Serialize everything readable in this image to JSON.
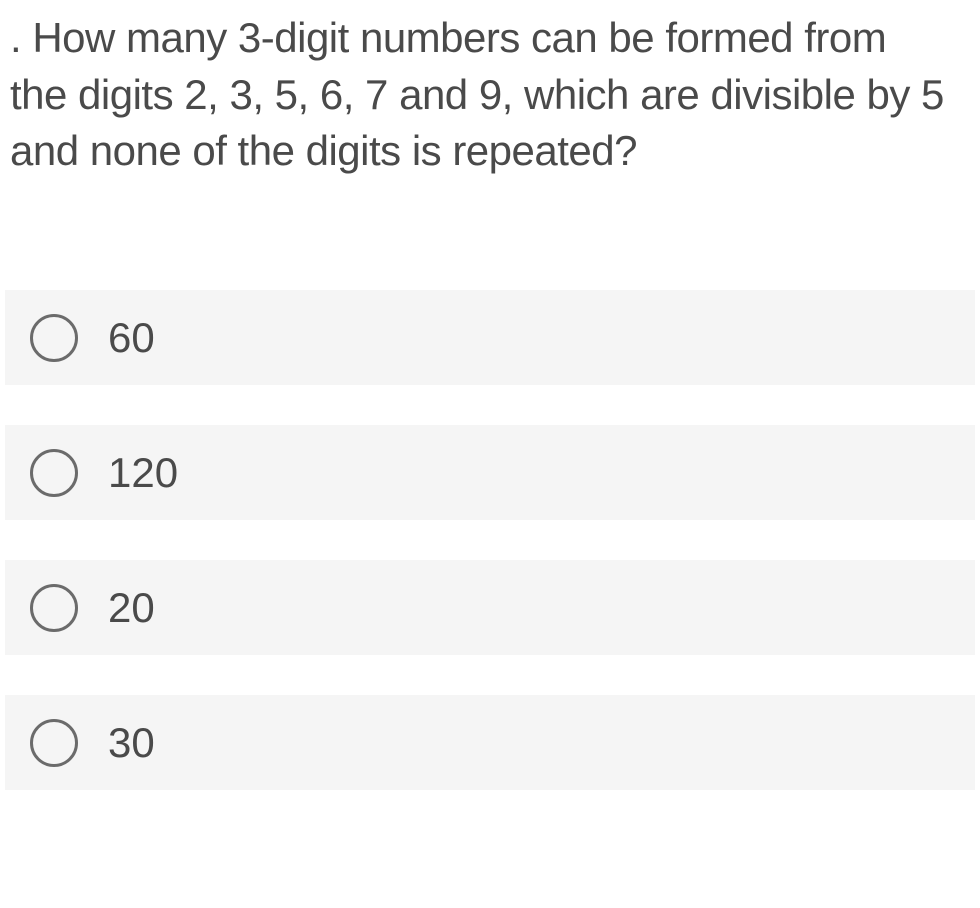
{
  "question": {
    "prefix": ". ",
    "text": "How many 3-digit numbers can be formed from the digits 2, 3, 5, 6, 7 and 9, which are divisible by 5 and none of the digits is repeated?"
  },
  "options": [
    {
      "label": "60",
      "selected": false
    },
    {
      "label": "120",
      "selected": false
    },
    {
      "label": "20",
      "selected": false
    },
    {
      "label": "30",
      "selected": false
    }
  ],
  "styles": {
    "question_fontsize": 42,
    "question_color": "#4a4a4a",
    "option_bg_color": "#f5f5f5",
    "option_fontsize": 42,
    "option_color": "#4a4a4a",
    "radio_border_color": "#6b6b6b",
    "radio_size": 48,
    "page_bg": "#ffffff"
  }
}
